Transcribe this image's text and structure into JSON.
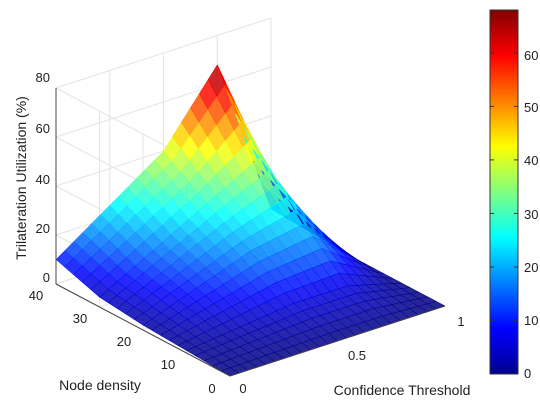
{
  "chart_data": {
    "type": "surface3d",
    "title": "",
    "xlabel": "Confidence Threshold",
    "ylabel": "Node density",
    "zlabel": "Trilateration Utilization (%)",
    "xlim": [
      0,
      1
    ],
    "ylim": [
      0,
      40
    ],
    "zlim": [
      0,
      80
    ],
    "x_ticks": [
      "0",
      "0.5",
      "1"
    ],
    "y_ticks": [
      "0",
      "10",
      "20",
      "30",
      "40"
    ],
    "z_ticks": [
      "0",
      "20",
      "40",
      "60",
      "80"
    ],
    "colorbar": {
      "min": 0,
      "max": 68,
      "ticks": [
        "0",
        "10",
        "20",
        "30",
        "40",
        "50",
        "60"
      ]
    },
    "colormap": "jet",
    "grid": true,
    "surface_points": [
      {
        "x": 0.0,
        "y": 40,
        "z": 10
      },
      {
        "x": 0.0,
        "y": 30,
        "z": 4
      },
      {
        "x": 0.0,
        "y": 20,
        "z": 2
      },
      {
        "x": 0.0,
        "y": 10,
        "z": 1
      },
      {
        "x": 0.0,
        "y": 0,
        "z": 0
      },
      {
        "x": 0.5,
        "y": 40,
        "z": 40
      },
      {
        "x": 0.5,
        "y": 30,
        "z": 28
      },
      {
        "x": 0.5,
        "y": 20,
        "z": 18
      },
      {
        "x": 0.5,
        "y": 10,
        "z": 6
      },
      {
        "x": 0.5,
        "y": 0,
        "z": 0
      },
      {
        "x": 0.75,
        "y": 40,
        "z": 68
      },
      {
        "x": 0.75,
        "y": 30,
        "z": 40
      },
      {
        "x": 0.75,
        "y": 20,
        "z": 22
      },
      {
        "x": 0.75,
        "y": 10,
        "z": 6
      },
      {
        "x": 0.75,
        "y": 0,
        "z": 0
      },
      {
        "x": 1.0,
        "y": 40,
        "z": 2
      },
      {
        "x": 1.0,
        "y": 30,
        "z": 1
      },
      {
        "x": 1.0,
        "y": 20,
        "z": 0
      },
      {
        "x": 1.0,
        "y": 10,
        "z": 0
      },
      {
        "x": 1.0,
        "y": 0,
        "z": 0
      }
    ]
  }
}
